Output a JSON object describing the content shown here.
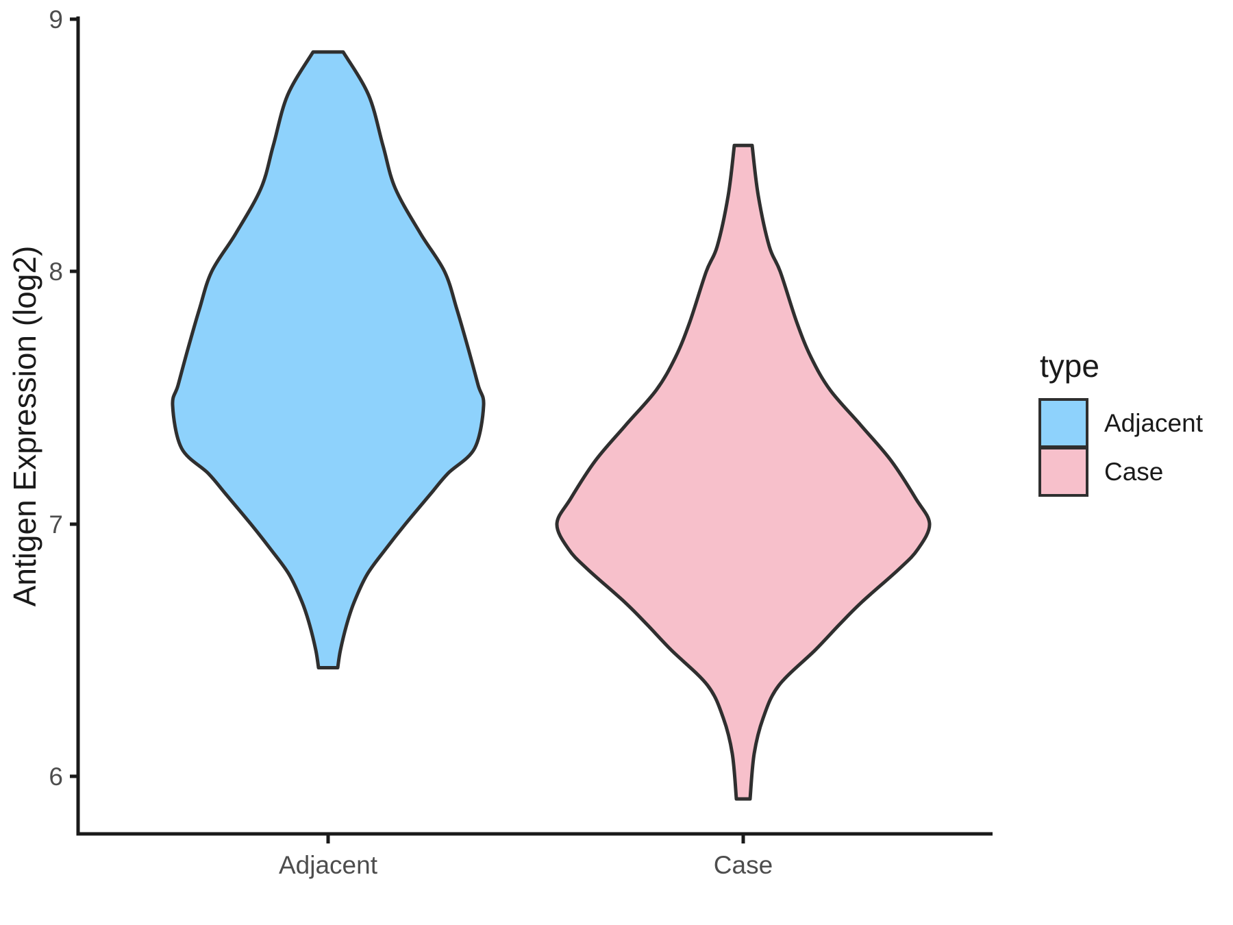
{
  "chart_data": {
    "type": "violin",
    "title": "",
    "xlabel": "",
    "ylabel": "Antigen Expression (log2)",
    "categories": [
      "Adjacent",
      "Case"
    ],
    "y_ticks": [
      "9",
      "8",
      "7",
      "6"
    ],
    "y_tick_values": [
      9,
      8,
      7,
      6
    ],
    "ylim": [
      5.77,
      9.01
    ],
    "grid": false,
    "background": "#ffffff",
    "outline_color": "#2f2f2f",
    "axis_color": "#1a1a1a",
    "tick_label_color": "#4d4d4d",
    "legend": {
      "title": "type",
      "position": "right",
      "entries": [
        {
          "label": "Adjacent",
          "fill": "#8ed2fc"
        },
        {
          "label": "Case",
          "fill": "#f7c0cb"
        }
      ]
    },
    "series": [
      {
        "name": "Adjacent",
        "fill": "#8ed2fc",
        "outline": "#2f2f2f",
        "range": [
          6.43,
          8.87
        ],
        "peak_density_at": 7.47,
        "profile": [
          [
            8.87,
            22
          ],
          [
            8.7,
            59
          ],
          [
            8.5,
            80
          ],
          [
            8.33,
            98
          ],
          [
            8.15,
            135
          ],
          [
            8.0,
            170
          ],
          [
            7.85,
            188
          ],
          [
            7.7,
            204
          ],
          [
            7.55,
            219
          ],
          [
            7.47,
            227
          ],
          [
            7.3,
            214
          ],
          [
            7.2,
            175
          ],
          [
            7.12,
            150
          ],
          [
            7.0,
            113
          ],
          [
            6.9,
            84
          ],
          [
            6.8,
            57
          ],
          [
            6.69,
            38
          ],
          [
            6.6,
            27
          ],
          [
            6.5,
            18
          ],
          [
            6.43,
            14
          ]
        ]
      },
      {
        "name": "Case",
        "fill": "#f7c0cb",
        "outline": "#2f2f2f",
        "range": [
          5.91,
          8.5
        ],
        "peak_density_at": 7.0,
        "profile": [
          [
            8.5,
            13
          ],
          [
            8.3,
            22
          ],
          [
            8.1,
            38
          ],
          [
            8.0,
            54
          ],
          [
            7.8,
            78
          ],
          [
            7.66,
            99
          ],
          [
            7.53,
            127
          ],
          [
            7.39,
            172
          ],
          [
            7.25,
            216
          ],
          [
            7.1,
            252
          ],
          [
            7.0,
            272
          ],
          [
            6.9,
            255
          ],
          [
            6.82,
            227
          ],
          [
            6.69,
            173
          ],
          [
            6.6,
            140
          ],
          [
            6.5,
            105
          ],
          [
            6.36,
            52
          ],
          [
            6.23,
            29
          ],
          [
            6.09,
            16
          ],
          [
            5.91,
            10
          ]
        ]
      }
    ]
  }
}
